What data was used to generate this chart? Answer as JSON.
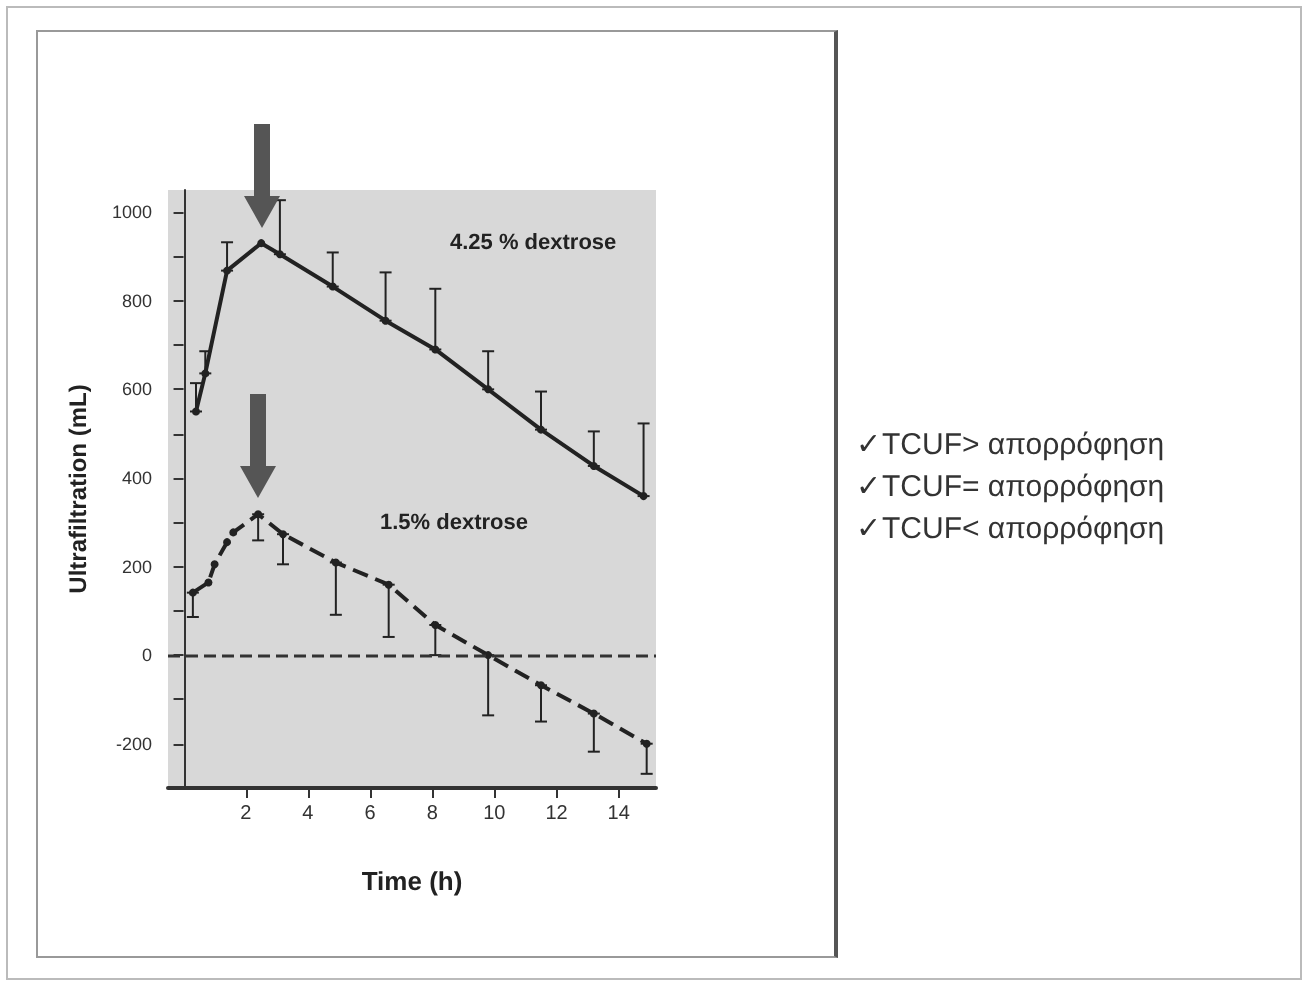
{
  "chart_data": {
    "type": "line",
    "xlabel": "Time (h)",
    "ylabel": "Ultrafiltration (mL)",
    "xlim": [
      -0.5,
      15.2
    ],
    "xticks": [
      2,
      4,
      6,
      8,
      10,
      12,
      14
    ],
    "ylim": [
      -300,
      1050
    ],
    "yticks": [
      -200,
      {
        "value": -100,
        "label": null
      },
      0,
      {
        "value": 100,
        "label": null
      },
      200,
      {
        "value": 300,
        "label": null
      },
      400,
      {
        "value": 500,
        "label": null
      },
      600,
      {
        "value": 700,
        "label": null
      },
      800,
      {
        "value": 900,
        "label": null
      },
      1000
    ],
    "grid": false,
    "marker": "circle",
    "series": [
      {
        "color": "#222222",
        "line_style": "solid",
        "x": [
          0.4,
          0.7,
          1.4,
          2.5,
          3.1,
          4.8,
          6.5,
          8.1,
          9.8,
          11.5,
          13.2,
          14.8
        ],
        "values": [
          550,
          636,
          868,
          930,
          905,
          832,
          755,
          690,
          600,
          509,
          427,
          359
        ],
        "errors": [
          [
            550,
            614
          ],
          [
            636,
            686
          ],
          [
            868,
            932
          ],
          null,
          [
            905,
            1027
          ],
          [
            832,
            909
          ],
          [
            755,
            864
          ],
          [
            690,
            827
          ],
          [
            600,
            686
          ],
          [
            509,
            595
          ],
          [
            427,
            505
          ],
          [
            359,
            523
          ]
        ]
      },
      {
        "color": "#222222",
        "line_style": "dashed",
        "x": [
          0.3,
          0.8,
          1.0,
          1.4,
          1.6,
          2.4,
          3.2,
          4.9,
          6.6,
          8.1,
          9.8,
          11.5,
          13.2,
          14.9
        ],
        "values": [
          141,
          164,
          205,
          255,
          277,
          318,
          273,
          209,
          159,
          68,
          0,
          -68,
          -132,
          -200
        ],
        "errors": [
          [
            86,
            141
          ],
          null,
          null,
          null,
          null,
          [
            259,
            318
          ],
          [
            205,
            273
          ],
          [
            91,
            209
          ],
          [
            41,
            159
          ],
          [
            0,
            68
          ],
          [
            -136,
            0
          ],
          [
            -150,
            -68
          ],
          [
            -218,
            -132
          ],
          [
            -268,
            -200
          ]
        ]
      }
    ],
    "ref_lines": [
      {
        "axis": "y",
        "value": 0,
        "line_style": "dashed",
        "color": "#333333"
      }
    ],
    "annotations": [
      "4.25 % dextrose",
      "1.5% dextrose",
      "✓TCUF> απορρόφηση",
      "✓TCUF= απορρόφηση",
      "✓TCUF< απορρόφηση"
    ]
  }
}
